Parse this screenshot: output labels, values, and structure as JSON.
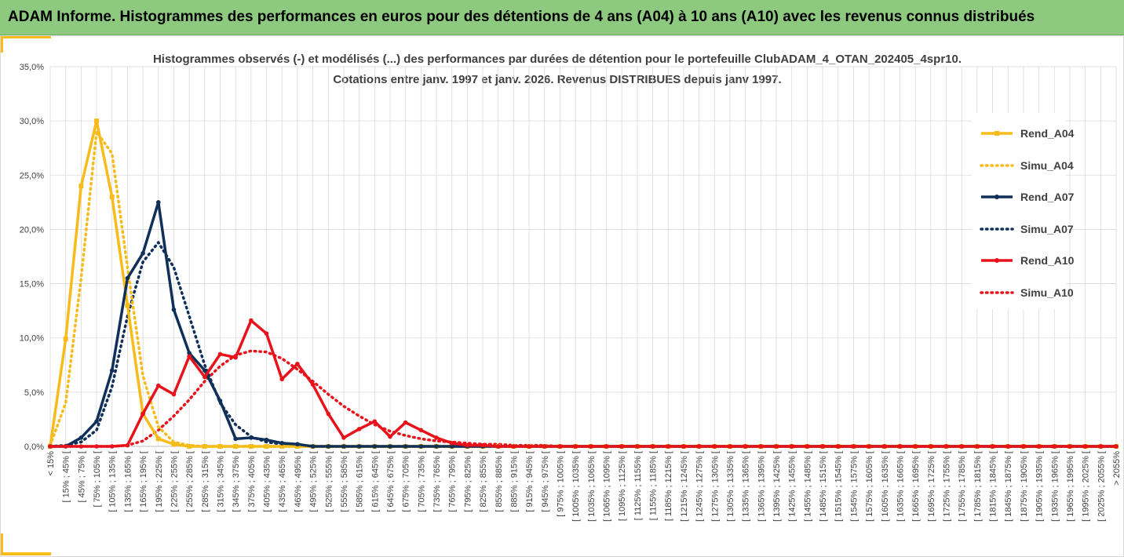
{
  "banner": {
    "title": "ADAM Informe. Histogrammes des performances en euros pour des détentions de 4 ans (A04) à 10 ans (A10) avec les revenus connus distribués"
  },
  "colors": {
    "banner_bg": "#8dc97f",
    "accent": "#f7bb1a",
    "A04": "#f7bb1a",
    "A07": "#10305a",
    "A10": "#e8121b",
    "grid": "#d9d9d9",
    "text": "#404040"
  },
  "chart_data": {
    "type": "line",
    "title_lines": [
      "Histogrammes observés (-) et modélisés (...) des performances par durées de détention pour le portefeuille ClubADAM_4_OTAN_202405_4spr10.",
      "Cotations entre janv. 1997 et janv. 2026. Revenus DISTRIBUES depuis janv 1997."
    ],
    "xlabel": "",
    "ylabel": "",
    "ylim": [
      0,
      0.35
    ],
    "y_ticks": [
      "0,0%",
      "5,0%",
      "10,0%",
      "15,0%",
      "20,0%",
      "25,0%",
      "30,0%",
      "35,0%"
    ],
    "grid": true,
    "legend_position": "right",
    "categories": [
      "< 15%",
      "[ 15% ; 45% [",
      "[ 45% ; 75% [",
      "[ 75% ; 105% [",
      "[ 105% ; 135% [",
      "[ 135% ; 165% [",
      "[ 165% ; 195% [",
      "[ 195% ; 225% [",
      "[ 225% ; 255% [",
      "[ 255% ; 285% [",
      "[ 285% ; 315% [",
      "[ 315% ; 345% [",
      "[ 345% ; 375% [",
      "[ 375% ; 405% [",
      "[ 405% ; 435% [",
      "[ 435% ; 465% [",
      "[ 465% ; 495% [",
      "[ 495% ; 525% [",
      "[ 525% ; 555% [",
      "[ 555% ; 585% [",
      "[ 585% ; 615% [",
      "[ 615% ; 645% [",
      "[ 645% ; 675% [",
      "[ 675% ; 705% [",
      "[ 705% ; 735% [",
      "[ 735% ; 765% [",
      "[ 765% ; 795% [",
      "[ 795% ; 825% [",
      "[ 825% ; 855% [",
      "[ 855% ; 885% [",
      "[ 885% ; 915% [",
      "[ 915% ; 945% [",
      "[ 945% ; 975% [",
      "[ 975% ; 1005% [",
      "[ 1005% ; 1035% [",
      "[ 1035% ; 1065% [",
      "[ 1065% ; 1095% [",
      "[ 1095% ; 1125% [",
      "[ 1125% ; 1155% [",
      "[ 1155% ; 1185% [",
      "[ 1185% ; 1215% [",
      "[ 1215% ; 1245% [",
      "[ 1245% ; 1275% [",
      "[ 1275% ; 1305% [",
      "[ 1305% ; 1335% [",
      "[ 1335% ; 1365% [",
      "[ 1365% ; 1395% [",
      "[ 1395% ; 1425% [",
      "[ 1425% ; 1455% [",
      "[ 1455% ; 1485% [",
      "[ 1485% ; 1515% [",
      "[ 1515% ; 1545% [",
      "[ 1545% ; 1575% [",
      "[ 1575% ; 1605% [",
      "[ 1605% ; 1635% [",
      "[ 1635% ; 1665% [",
      "[ 1665% ; 1695% [",
      "[ 1695% ; 1725% [",
      "[ 1725% ; 1755% [",
      "[ 1755% ; 1785% [",
      "[ 1785% ; 1815% [",
      "[ 1815% ; 1845% [",
      "[ 1845% ; 1875% [",
      "[ 1875% ; 1905% [",
      "[ 1905% ; 1935% [",
      "[ 1935% ; 1965% [",
      "[ 1965% ; 1995% [",
      "[ 1995% ; 2025% [",
      "[ 2025% ; 2055% [",
      "> 2055%"
    ],
    "series": [
      {
        "name": "Rend_A04",
        "style": "solid",
        "marker": "square",
        "color": "#f7bb1a",
        "values": [
          0,
          0.099,
          0.24,
          0.3,
          0.23,
          0.13,
          0.03,
          0.007,
          0.002,
          0,
          0,
          0,
          0,
          0,
          0,
          0,
          0,
          0,
          0,
          0,
          0,
          0,
          0,
          0,
          0,
          0,
          0,
          0,
          0,
          0,
          0,
          0,
          0,
          0,
          0,
          0,
          0,
          0,
          0,
          0,
          0,
          0,
          0,
          0,
          0,
          0,
          0,
          0,
          0,
          0,
          0,
          0,
          0,
          0,
          0,
          0,
          0,
          0,
          0,
          0,
          0,
          0,
          0,
          0,
          0,
          0,
          0,
          0,
          0,
          0
        ]
      },
      {
        "name": "Simu_A04",
        "style": "dotted",
        "marker": "none",
        "color": "#f7bb1a",
        "values": [
          0.001,
          0.04,
          0.155,
          0.29,
          0.27,
          0.165,
          0.065,
          0.018,
          0.004,
          0.001,
          0,
          0,
          0,
          0,
          0,
          0,
          0,
          0,
          0,
          0,
          0,
          0,
          0,
          0,
          0,
          0,
          0,
          0,
          0,
          0,
          0,
          0,
          0,
          0,
          0,
          0,
          0,
          0,
          0,
          0,
          0,
          0,
          0,
          0,
          0,
          0,
          0,
          0,
          0,
          0,
          0,
          0,
          0,
          0,
          0,
          0,
          0,
          0,
          0,
          0,
          0,
          0,
          0,
          0,
          0,
          0,
          0,
          0,
          0,
          0
        ]
      },
      {
        "name": "Rend_A07",
        "style": "solid",
        "marker": "circle",
        "color": "#10305a",
        "values": [
          0,
          0,
          0.008,
          0.023,
          0.07,
          0.155,
          0.178,
          0.225,
          0.126,
          0.086,
          0.07,
          0.042,
          0.007,
          0.008,
          0.006,
          0.003,
          0.002,
          0,
          0,
          0,
          0,
          0,
          0,
          0,
          0,
          0,
          0,
          0,
          0,
          0,
          0,
          0,
          0,
          0,
          0,
          0,
          0,
          0,
          0,
          0,
          0,
          0,
          0,
          0,
          0,
          0,
          0,
          0,
          0,
          0,
          0,
          0,
          0,
          0,
          0,
          0,
          0,
          0,
          0,
          0,
          0,
          0,
          0,
          0,
          0,
          0,
          0,
          0,
          0,
          0
        ]
      },
      {
        "name": "Simu_A07",
        "style": "dotted",
        "marker": "none",
        "color": "#10305a",
        "values": [
          0,
          0.001,
          0.004,
          0.015,
          0.055,
          0.12,
          0.17,
          0.188,
          0.165,
          0.12,
          0.075,
          0.04,
          0.02,
          0.009,
          0.004,
          0.002,
          0.001,
          0,
          0,
          0,
          0,
          0,
          0,
          0,
          0,
          0,
          0,
          0,
          0,
          0,
          0,
          0,
          0,
          0,
          0,
          0,
          0,
          0,
          0,
          0,
          0,
          0,
          0,
          0,
          0,
          0,
          0,
          0,
          0,
          0,
          0,
          0,
          0,
          0,
          0,
          0,
          0,
          0,
          0,
          0,
          0,
          0,
          0,
          0,
          0,
          0,
          0,
          0,
          0,
          0
        ]
      },
      {
        "name": "Rend_A10",
        "style": "solid",
        "marker": "circle",
        "color": "#e8121b",
        "values": [
          0,
          0,
          0,
          0,
          0,
          0.001,
          0.03,
          0.056,
          0.048,
          0.083,
          0.064,
          0.085,
          0.082,
          0.116,
          0.104,
          0.062,
          0.076,
          0.057,
          0.03,
          0.008,
          0.016,
          0.023,
          0.009,
          0.022,
          0.015,
          0.008,
          0.003,
          0.001,
          0.001,
          0,
          0,
          0,
          0,
          0,
          0,
          0,
          0,
          0,
          0,
          0,
          0,
          0,
          0,
          0,
          0,
          0,
          0,
          0,
          0,
          0,
          0,
          0,
          0,
          0,
          0,
          0,
          0,
          0,
          0,
          0,
          0,
          0,
          0,
          0,
          0,
          0,
          0,
          0,
          0,
          0
        ]
      },
      {
        "name": "Simu_A10",
        "style": "dotted",
        "marker": "none",
        "color": "#e8121b",
        "values": [
          0,
          0,
          0,
          0,
          0,
          0.001,
          0.005,
          0.015,
          0.028,
          0.043,
          0.06,
          0.074,
          0.084,
          0.088,
          0.087,
          0.081,
          0.071,
          0.06,
          0.048,
          0.037,
          0.028,
          0.02,
          0.014,
          0.01,
          0.007,
          0.005,
          0.004,
          0.003,
          0.002,
          0.002,
          0.001,
          0.001,
          0.001,
          0,
          0,
          0,
          0,
          0,
          0,
          0,
          0,
          0,
          0,
          0,
          0,
          0,
          0,
          0,
          0,
          0,
          0,
          0,
          0,
          0,
          0,
          0,
          0,
          0,
          0,
          0,
          0,
          0,
          0,
          0,
          0,
          0,
          0,
          0,
          0,
          0
        ]
      }
    ]
  }
}
